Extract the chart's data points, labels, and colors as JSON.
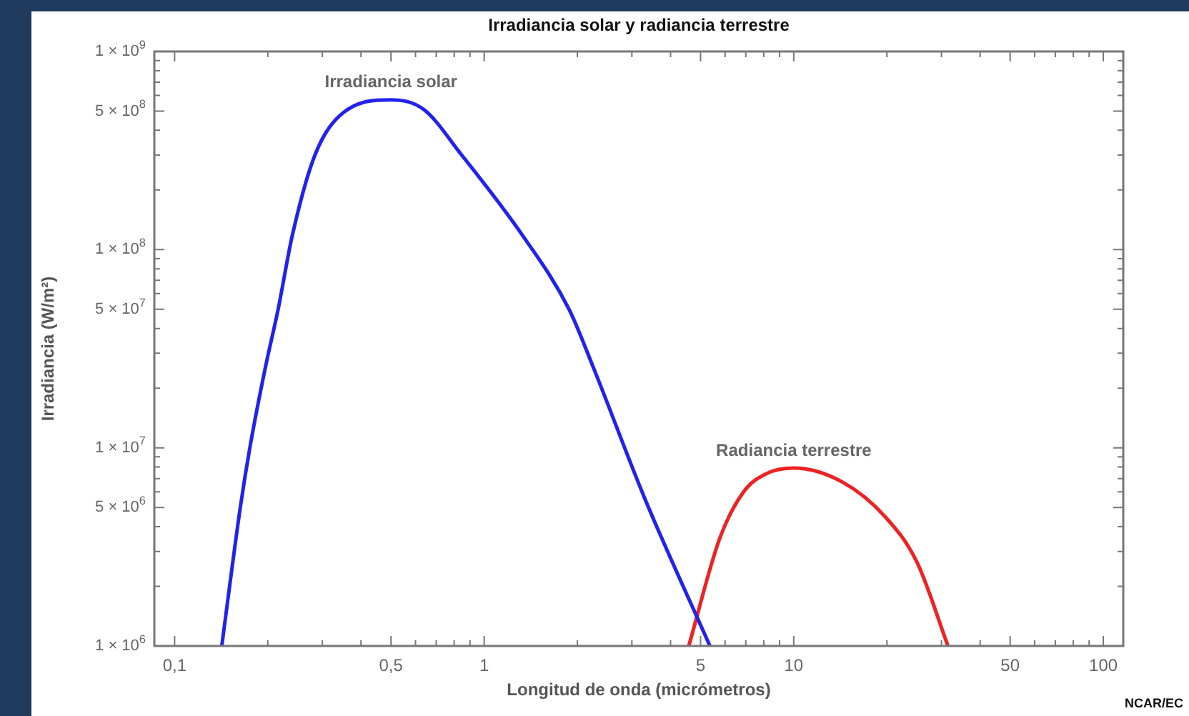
{
  "chart_data": {
    "type": "line",
    "title": "Irradiancia solar y radiancia terrestre",
    "xlabel": "Longitud de onda (micrómetros)",
    "ylabel": "Irradiancia (W/m²)",
    "log": "xy",
    "marker": "none",
    "line_style": "solid",
    "legend": false,
    "grid": false,
    "xlim": [
      0.086,
      116
    ],
    "ylim": [
      1000000,
      1000000000
    ],
    "xticks": [
      {
        "value": 0.1,
        "label": "0,1"
      },
      {
        "value": 0.2,
        "label": null
      },
      {
        "value": 0.3,
        "label": null
      },
      {
        "value": 0.4,
        "label": null
      },
      {
        "value": 0.5,
        "label": "0,5"
      },
      {
        "value": 0.6,
        "label": null
      },
      {
        "value": 0.7,
        "label": null
      },
      {
        "value": 0.8,
        "label": null
      },
      {
        "value": 0.9,
        "label": null
      },
      1,
      {
        "value": 2,
        "label": null
      },
      {
        "value": 3,
        "label": null
      },
      {
        "value": 4,
        "label": null
      },
      5,
      {
        "value": 6,
        "label": null
      },
      {
        "value": 7,
        "label": null
      },
      {
        "value": 8,
        "label": null
      },
      {
        "value": 9,
        "label": null
      },
      10,
      {
        "value": 20,
        "label": null
      },
      {
        "value": 30,
        "label": null
      },
      {
        "value": 40,
        "label": null
      },
      50,
      {
        "value": 60,
        "label": null
      },
      {
        "value": 70,
        "label": null
      },
      {
        "value": 80,
        "label": null
      },
      {
        "value": 90,
        "label": null
      },
      100
    ],
    "yticks": [
      {
        "value": 1000000,
        "label": "1 × 10$^{6}$"
      },
      {
        "value": 2000000,
        "label": null
      },
      {
        "value": 3000000,
        "label": null
      },
      {
        "value": 4000000,
        "label": null
      },
      {
        "value": 5000000,
        "label": "5 × 10$^{6}$"
      },
      {
        "value": 6000000,
        "label": null
      },
      {
        "value": 7000000,
        "label": null
      },
      {
        "value": 8000000,
        "label": null
      },
      {
        "value": 9000000,
        "label": null
      },
      {
        "value": 10000000,
        "label": "1 × 10$^{7}$"
      },
      {
        "value": 20000000,
        "label": null
      },
      {
        "value": 30000000,
        "label": null
      },
      {
        "value": 40000000,
        "label": null
      },
      {
        "value": 50000000,
        "label": "5 × 10$^{7}$"
      },
      {
        "value": 60000000,
        "label": null
      },
      {
        "value": 70000000,
        "label": null
      },
      {
        "value": 80000000,
        "label": null
      },
      {
        "value": 90000000,
        "label": null
      },
      {
        "value": 100000000,
        "label": "1 × 10$^{8}$"
      },
      {
        "value": 200000000,
        "label": null
      },
      {
        "value": 300000000,
        "label": null
      },
      {
        "value": 400000000,
        "label": null
      },
      {
        "value": 500000000,
        "label": "5 × 10$^{8}$"
      },
      {
        "value": 600000000,
        "label": null
      },
      {
        "value": 700000000,
        "label": null
      },
      {
        "value": 800000000,
        "label": null
      },
      {
        "value": 900000000,
        "label": null
      },
      {
        "value": 1000000000,
        "label": "1 × 10$^{9}$"
      }
    ],
    "series": [
      {
        "name": "Irradiancia solar",
        "color": "#2222ee",
        "x": [
          0.142,
          0.163,
          0.175,
          0.197,
          0.216,
          0.24,
          0.284,
          0.35,
          0.5,
          0.637,
          0.846,
          1.33,
          1.88,
          2.24,
          3.31,
          5.36
        ],
        "values": [
          1000000,
          5000000,
          10000000,
          26000000,
          50000000,
          118000000,
          300000000,
          490000000,
          570000000,
          510000000,
          300000000,
          118000000,
          50000000,
          26000000,
          5500000,
          1000000
        ]
      },
      {
        "name": "Radiancia terrestre",
        "color": "#ee2222",
        "x": [
          4.58,
          5.77,
          6.89,
          8.15,
          10,
          14.4,
          19.7,
          25,
          31.5
        ],
        "values": [
          1000000,
          3500000,
          6000000,
          7400000,
          7900000,
          6700000,
          4500000,
          2650000,
          1000000
        ]
      }
    ],
    "annotations": [
      "NCAR/EC"
    ]
  }
}
